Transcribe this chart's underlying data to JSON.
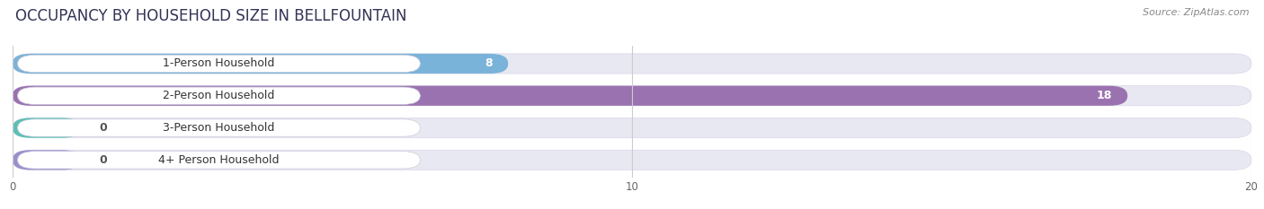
{
  "title": "OCCUPANCY BY HOUSEHOLD SIZE IN BELLFOUNTAIN",
  "source": "Source: ZipAtlas.com",
  "categories": [
    "1-Person Household",
    "2-Person Household",
    "3-Person Household",
    "4+ Person Household"
  ],
  "values": [
    8,
    18,
    0,
    0
  ],
  "bar_colors": [
    "#7ab3d9",
    "#9b72b0",
    "#5bbfb5",
    "#9b8fcc"
  ],
  "xlim": [
    0,
    20
  ],
  "xticks": [
    0,
    10,
    20
  ],
  "background_color": "#ffffff",
  "bar_bg_color": "#e8e8f2",
  "row_bg_color": "#f0f0f8",
  "title_fontsize": 12,
  "source_fontsize": 8,
  "label_fontsize": 9,
  "value_fontsize": 9
}
